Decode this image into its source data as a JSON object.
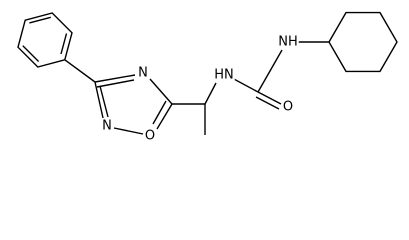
{
  "atoms": [
    {
      "label": "N"
    },
    {
      "label": "N"
    },
    {
      "label": "O"
    },
    {
      "label": "HN"
    },
    {
      "label": "O"
    },
    {
      "label": "NH"
    }
  ]
}
